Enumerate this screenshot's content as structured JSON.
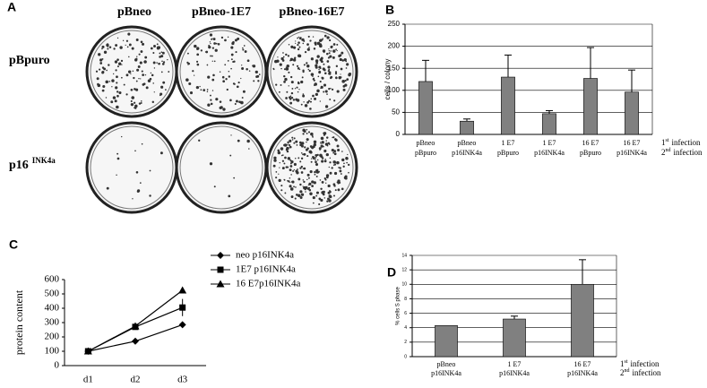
{
  "panel_a": {
    "label": "A",
    "columns": [
      "pBneo",
      "pBneo-1E7",
      "pBneo-16E7"
    ],
    "rows": [
      {
        "label": "pBpuro"
      },
      {
        "label": "p16",
        "sup": "INK4a"
      }
    ]
  },
  "chart_data": [
    {
      "type": "bar",
      "panel": "B",
      "ylabel": "cells / colony",
      "categories": [
        [
          "pBneo",
          "pBpuro"
        ],
        [
          "pBneo",
          "p16INK4a"
        ],
        [
          "1 E7",
          "pBpuro"
        ],
        [
          "1 E7",
          "p16INK4a"
        ],
        [
          "16 E7",
          "pBpuro"
        ],
        [
          "16 E7",
          "p16INK4a"
        ]
      ],
      "values": [
        120,
        30,
        130,
        47,
        127,
        96
      ],
      "errors": [
        48,
        5,
        50,
        7,
        70,
        50
      ],
      "color": "#808080",
      "ylim": [
        0,
        250
      ],
      "yticks": [
        0,
        50,
        100,
        150,
        200,
        250
      ],
      "grid": true,
      "row_labels": [
        [
          "1",
          "st",
          "infection"
        ],
        [
          "2",
          "nd",
          "infection"
        ]
      ]
    },
    {
      "type": "line",
      "panel": "C",
      "ylabel": "protein content",
      "categories": [
        "d1",
        "d2",
        "d3"
      ],
      "series": [
        {
          "name": "neo p16INK4a",
          "color": "#000000",
          "marker": "diamond",
          "values": [
            100,
            170,
            285
          ]
        },
        {
          "name": "1E7 p16INK4a",
          "color": "#000000",
          "marker": "square",
          "values": [
            100,
            270,
            405
          ],
          "errors": [
            null,
            null,
            60
          ]
        },
        {
          "name": "16 E7p16INK4a",
          "color": "#000000",
          "marker": "triangle",
          "values": [
            100,
            275,
            525
          ]
        }
      ],
      "ylim": [
        0,
        600
      ],
      "yticks": [
        0,
        100,
        200,
        300,
        400,
        500,
        600
      ],
      "grid": false,
      "legend": "right"
    },
    {
      "type": "bar",
      "panel": "D",
      "ylabel": "% cells S phase",
      "categories": [
        [
          "pBneo",
          "p16INK4a"
        ],
        [
          "1 E7",
          "p16INK4a"
        ],
        [
          "16 E7",
          "p16INK4a"
        ]
      ],
      "values": [
        4.3,
        5.2,
        10
      ],
      "errors": [
        null,
        0.4,
        3.4
      ],
      "color": "#808080",
      "ylim": [
        0,
        14
      ],
      "yticks": [
        0,
        2,
        4,
        6,
        8,
        10,
        12,
        14
      ],
      "grid": true,
      "row_labels": [
        [
          "1",
          "st",
          "infection"
        ],
        [
          "2",
          "nd",
          "infection"
        ]
      ]
    }
  ]
}
